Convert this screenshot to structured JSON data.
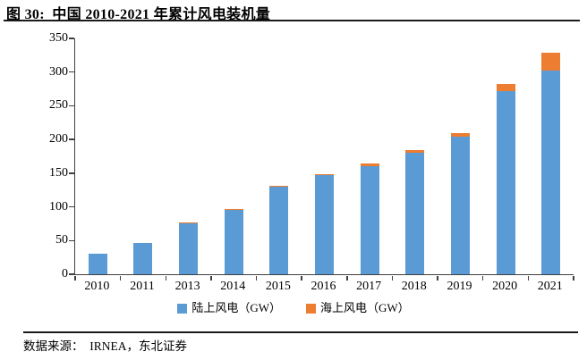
{
  "title": "图 30:  中国 2010-2021 年累计风电装机量",
  "source": "数据来源：  IRNEA，东北证券",
  "colors": {
    "onshore": "#5B9BD5",
    "offshore": "#ED7D31",
    "axis": "#404040",
    "rule": "#1a1a1a"
  },
  "chart_data": {
    "type": "bar",
    "stacked": true,
    "title": "图 30:  中国 2010-2021 年累计风电装机量",
    "categories": [
      "2010",
      "2011",
      "2013",
      "2014",
      "2015",
      "2016",
      "2017",
      "2018",
      "2019",
      "2020",
      "2021"
    ],
    "series": [
      {
        "name": "陆上风电（GW）",
        "color": "#5B9BD5",
        "values": [
          30,
          46,
          76,
          96,
          130,
          147,
          161,
          180,
          204,
          272,
          302
        ]
      },
      {
        "name": "海上风电（GW）",
        "color": "#ED7D31",
        "values": [
          0,
          0,
          0.4,
          0.7,
          1,
          2,
          3,
          4.5,
          6,
          10,
          26.5
        ]
      }
    ],
    "xlabel": "",
    "ylabel": "",
    "ylim": [
      0,
      350
    ],
    "yticks": [
      0,
      50,
      100,
      150,
      200,
      250,
      300,
      350
    ],
    "grid": false,
    "legend_position": "bottom"
  }
}
